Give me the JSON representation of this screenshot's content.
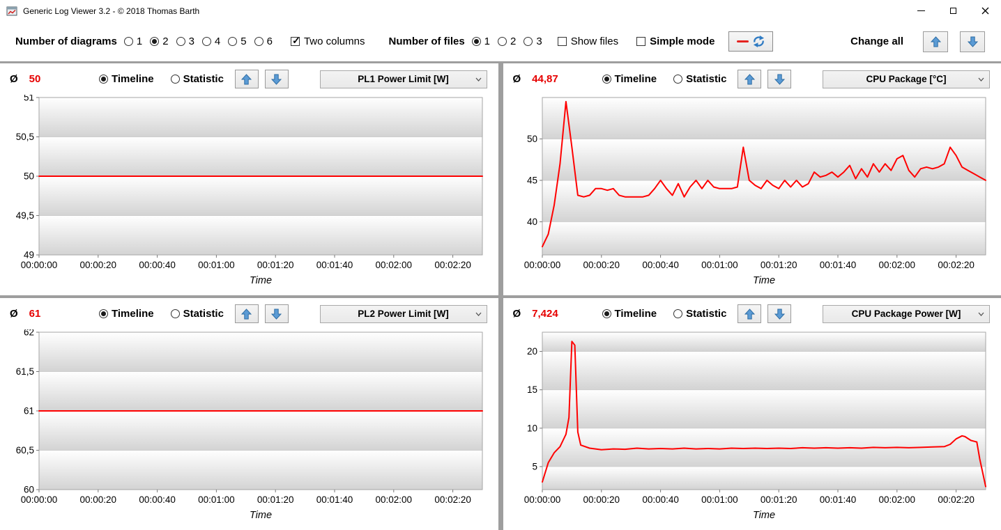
{
  "window": {
    "title": "Generic Log Viewer 3.2 - © 2018 Thomas Barth"
  },
  "toolbar": {
    "diagrams_label": "Number of diagrams",
    "diagram_options": [
      "1",
      "2",
      "3",
      "4",
      "5",
      "6"
    ],
    "diagrams_selected": "2",
    "two_columns_label": "Two columns",
    "two_columns_checked": true,
    "files_label": "Number of files",
    "file_options": [
      "1",
      "2",
      "3"
    ],
    "files_selected": "1",
    "show_files_label": "Show files",
    "show_files_checked": false,
    "simple_mode_label": "Simple mode",
    "simple_mode_checked": false,
    "change_all_label": "Change all",
    "line_color": "#e42320",
    "arrow_color": "#2f7bc3"
  },
  "panels": [
    {
      "average_label": "Ø",
      "average": "50",
      "timeline_label": "Timeline",
      "statistic_label": "Statistic",
      "mode": "timeline",
      "signal": "PL1 Power Limit [W]"
    },
    {
      "average_label": "Ø",
      "average": "44,87",
      "timeline_label": "Timeline",
      "statistic_label": "Statistic",
      "mode": "timeline",
      "signal": "CPU Package [°C]"
    },
    {
      "average_label": "Ø",
      "average": "61",
      "timeline_label": "Timeline",
      "statistic_label": "Statistic",
      "mode": "timeline",
      "signal": "PL2 Power Limit [W]"
    },
    {
      "average_label": "Ø",
      "average": "7,424",
      "timeline_label": "Timeline",
      "statistic_label": "Statistic",
      "mode": "timeline",
      "signal": "CPU Package Power [W]"
    }
  ],
  "chart_data": [
    {
      "type": "line",
      "title": "PL1 Power Limit [W]",
      "xlabel": "Time",
      "xlim": [
        0,
        150
      ],
      "ylim": [
        49,
        51
      ],
      "grid": true,
      "yticks": [
        {
          "v": 49,
          "label": "49"
        },
        {
          "v": 49.5,
          "label": "49,5"
        },
        {
          "v": 50,
          "label": "50"
        },
        {
          "v": 50.5,
          "label": "50,5"
        },
        {
          "v": 51,
          "label": "51"
        }
      ],
      "xticks": [
        {
          "v": 0,
          "label": "00:00:00"
        },
        {
          "v": 20,
          "label": "00:00:20"
        },
        {
          "v": 40,
          "label": "00:00:40"
        },
        {
          "v": 60,
          "label": "00:01:00"
        },
        {
          "v": 80,
          "label": "00:01:20"
        },
        {
          "v": 100,
          "label": "00:01:40"
        },
        {
          "v": 120,
          "label": "00:02:00"
        },
        {
          "v": 140,
          "label": "00:02:20"
        }
      ],
      "series": [
        {
          "name": "PL1 Power Limit [W]",
          "color": "#ff0000",
          "points": [
            [
              0,
              50
            ],
            [
              150,
              50
            ]
          ]
        }
      ]
    },
    {
      "type": "line",
      "title": "CPU Package [°C]",
      "xlabel": "Time",
      "xlim": [
        0,
        150
      ],
      "ylim": [
        36,
        55
      ],
      "grid": true,
      "yticks": [
        {
          "v": 40,
          "label": "40"
        },
        {
          "v": 45,
          "label": "45"
        },
        {
          "v": 50,
          "label": "50"
        }
      ],
      "xticks": [
        {
          "v": 0,
          "label": "00:00:00"
        },
        {
          "v": 20,
          "label": "00:00:20"
        },
        {
          "v": 40,
          "label": "00:00:40"
        },
        {
          "v": 60,
          "label": "00:01:00"
        },
        {
          "v": 80,
          "label": "00:01:20"
        },
        {
          "v": 100,
          "label": "00:01:40"
        },
        {
          "v": 120,
          "label": "00:02:00"
        },
        {
          "v": 140,
          "label": "00:02:20"
        }
      ],
      "series": [
        {
          "name": "CPU Package [°C]",
          "color": "#ff0000",
          "points": [
            [
              0,
              37
            ],
            [
              2,
              38.5
            ],
            [
              4,
              42
            ],
            [
              6,
              47
            ],
            [
              8,
              54.5
            ],
            [
              10,
              49
            ],
            [
              12,
              43.2
            ],
            [
              14,
              43
            ],
            [
              16,
              43.2
            ],
            [
              18,
              44
            ],
            [
              20,
              44
            ],
            [
              22,
              43.8
            ],
            [
              24,
              44
            ],
            [
              26,
              43.2
            ],
            [
              28,
              43
            ],
            [
              30,
              43
            ],
            [
              32,
              43
            ],
            [
              34,
              43
            ],
            [
              36,
              43.2
            ],
            [
              38,
              44
            ],
            [
              40,
              45
            ],
            [
              42,
              44
            ],
            [
              44,
              43.2
            ],
            [
              46,
              44.6
            ],
            [
              48,
              43
            ],
            [
              50,
              44.2
            ],
            [
              52,
              45
            ],
            [
              54,
              44
            ],
            [
              56,
              45
            ],
            [
              58,
              44.2
            ],
            [
              60,
              44
            ],
            [
              62,
              44
            ],
            [
              64,
              44
            ],
            [
              66,
              44.2
            ],
            [
              68,
              49
            ],
            [
              70,
              45
            ],
            [
              72,
              44.4
            ],
            [
              74,
              44
            ],
            [
              76,
              45
            ],
            [
              78,
              44.4
            ],
            [
              80,
              44
            ],
            [
              82,
              45
            ],
            [
              84,
              44.2
            ],
            [
              86,
              45
            ],
            [
              88,
              44.2
            ],
            [
              90,
              44.6
            ],
            [
              92,
              46
            ],
            [
              94,
              45.4
            ],
            [
              96,
              45.6
            ],
            [
              98,
              46
            ],
            [
              100,
              45.4
            ],
            [
              102,
              46
            ],
            [
              104,
              46.8
            ],
            [
              106,
              45.2
            ],
            [
              108,
              46.4
            ],
            [
              110,
              45.4
            ],
            [
              112,
              47
            ],
            [
              114,
              46
            ],
            [
              116,
              47
            ],
            [
              118,
              46.2
            ],
            [
              120,
              47.6
            ],
            [
              122,
              48
            ],
            [
              124,
              46.2
            ],
            [
              126,
              45.4
            ],
            [
              128,
              46.4
            ],
            [
              130,
              46.6
            ],
            [
              132,
              46.4
            ],
            [
              134,
              46.6
            ],
            [
              136,
              47
            ],
            [
              138,
              49
            ],
            [
              140,
              48
            ],
            [
              142,
              46.6
            ],
            [
              144,
              46.2
            ],
            [
              146,
              45.8
            ],
            [
              148,
              45.4
            ],
            [
              150,
              45
            ]
          ]
        }
      ]
    },
    {
      "type": "line",
      "title": "PL2 Power Limit [W]",
      "xlabel": "Time",
      "xlim": [
        0,
        150
      ],
      "ylim": [
        60,
        62
      ],
      "grid": true,
      "yticks": [
        {
          "v": 60,
          "label": "60"
        },
        {
          "v": 60.5,
          "label": "60,5"
        },
        {
          "v": 61,
          "label": "61"
        },
        {
          "v": 61.5,
          "label": "61,5"
        },
        {
          "v": 62,
          "label": "62"
        }
      ],
      "xticks": [
        {
          "v": 0,
          "label": "00:00:00"
        },
        {
          "v": 20,
          "label": "00:00:20"
        },
        {
          "v": 40,
          "label": "00:00:40"
        },
        {
          "v": 60,
          "label": "00:01:00"
        },
        {
          "v": 80,
          "label": "00:01:20"
        },
        {
          "v": 100,
          "label": "00:01:40"
        },
        {
          "v": 120,
          "label": "00:02:00"
        },
        {
          "v": 140,
          "label": "00:02:20"
        }
      ],
      "series": [
        {
          "name": "PL2 Power Limit [W]",
          "color": "#ff0000",
          "points": [
            [
              0,
              61
            ],
            [
              150,
              61
            ]
          ]
        }
      ]
    },
    {
      "type": "line",
      "title": "CPU Package Power [W]",
      "xlabel": "Time",
      "xlim": [
        0,
        150
      ],
      "ylim": [
        2,
        22.5
      ],
      "grid": true,
      "yticks": [
        {
          "v": 5,
          "label": "5"
        },
        {
          "v": 10,
          "label": "10"
        },
        {
          "v": 15,
          "label": "15"
        },
        {
          "v": 20,
          "label": "20"
        }
      ],
      "xticks": [
        {
          "v": 0,
          "label": "00:00:00"
        },
        {
          "v": 20,
          "label": "00:00:20"
        },
        {
          "v": 40,
          "label": "00:00:40"
        },
        {
          "v": 60,
          "label": "00:01:00"
        },
        {
          "v": 80,
          "label": "00:01:20"
        },
        {
          "v": 100,
          "label": "00:01:40"
        },
        {
          "v": 120,
          "label": "00:02:00"
        },
        {
          "v": 140,
          "label": "00:02:20"
        }
      ],
      "series": [
        {
          "name": "CPU Package Power [W]",
          "color": "#ff0000",
          "points": [
            [
              0,
              3
            ],
            [
              2,
              5.5
            ],
            [
              4,
              6.8
            ],
            [
              6,
              7.6
            ],
            [
              8,
              9.2
            ],
            [
              9,
              11.4
            ],
            [
              10,
              21.3
            ],
            [
              11,
              20.8
            ],
            [
              12,
              9.5
            ],
            [
              13,
              7.8
            ],
            [
              16,
              7.4
            ],
            [
              20,
              7.2
            ],
            [
              24,
              7.3
            ],
            [
              28,
              7.25
            ],
            [
              32,
              7.4
            ],
            [
              36,
              7.3
            ],
            [
              40,
              7.35
            ],
            [
              44,
              7.3
            ],
            [
              48,
              7.4
            ],
            [
              52,
              7.3
            ],
            [
              56,
              7.35
            ],
            [
              60,
              7.3
            ],
            [
              64,
              7.4
            ],
            [
              68,
              7.35
            ],
            [
              72,
              7.4
            ],
            [
              76,
              7.35
            ],
            [
              80,
              7.4
            ],
            [
              84,
              7.35
            ],
            [
              88,
              7.45
            ],
            [
              92,
              7.4
            ],
            [
              96,
              7.45
            ],
            [
              100,
              7.4
            ],
            [
              104,
              7.45
            ],
            [
              108,
              7.4
            ],
            [
              112,
              7.5
            ],
            [
              116,
              7.45
            ],
            [
              120,
              7.5
            ],
            [
              124,
              7.45
            ],
            [
              128,
              7.5
            ],
            [
              132,
              7.55
            ],
            [
              136,
              7.6
            ],
            [
              138,
              7.9
            ],
            [
              140,
              8.6
            ],
            [
              142,
              9
            ],
            [
              143,
              8.9
            ],
            [
              145,
              8.4
            ],
            [
              147,
              8.2
            ],
            [
              148,
              6
            ],
            [
              150,
              2.4
            ]
          ]
        }
      ]
    }
  ]
}
